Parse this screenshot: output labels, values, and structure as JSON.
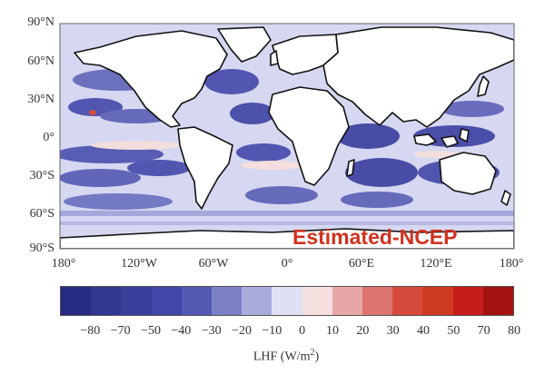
{
  "map": {
    "lat_labels": [
      "90°N",
      "60°N",
      "30°N",
      "0°",
      "30°S",
      "60°S",
      "90°S"
    ],
    "lon_labels": [
      "180°",
      "120°W",
      "60°W",
      "0°",
      "60°E",
      "120°E",
      "180°"
    ],
    "watermark": "Estimated-NCEP",
    "ocean_color": "#d6d8f2",
    "land_color": "#ffffff",
    "coast_color": "#111111"
  },
  "colorbar": {
    "title_base": "LHF (W/m",
    "title_sup": "2",
    "title_end": ")",
    "ticks": [
      "−80",
      "−70",
      "−50",
      "−40",
      "−30",
      "−20",
      "−10",
      "0",
      "10",
      "20",
      "30",
      "40",
      "50",
      "70",
      "80"
    ],
    "colors": [
      "#262a80",
      "#313790",
      "#3a3f9c",
      "#4146a8",
      "#5358b2",
      "#7b80c6",
      "#a9abdc",
      "#dfe0f3",
      "#f5dede",
      "#e9a6a6",
      "#dd7470",
      "#d64a3b",
      "#cf3a22",
      "#c61c1c",
      "#a41212"
    ]
  }
}
